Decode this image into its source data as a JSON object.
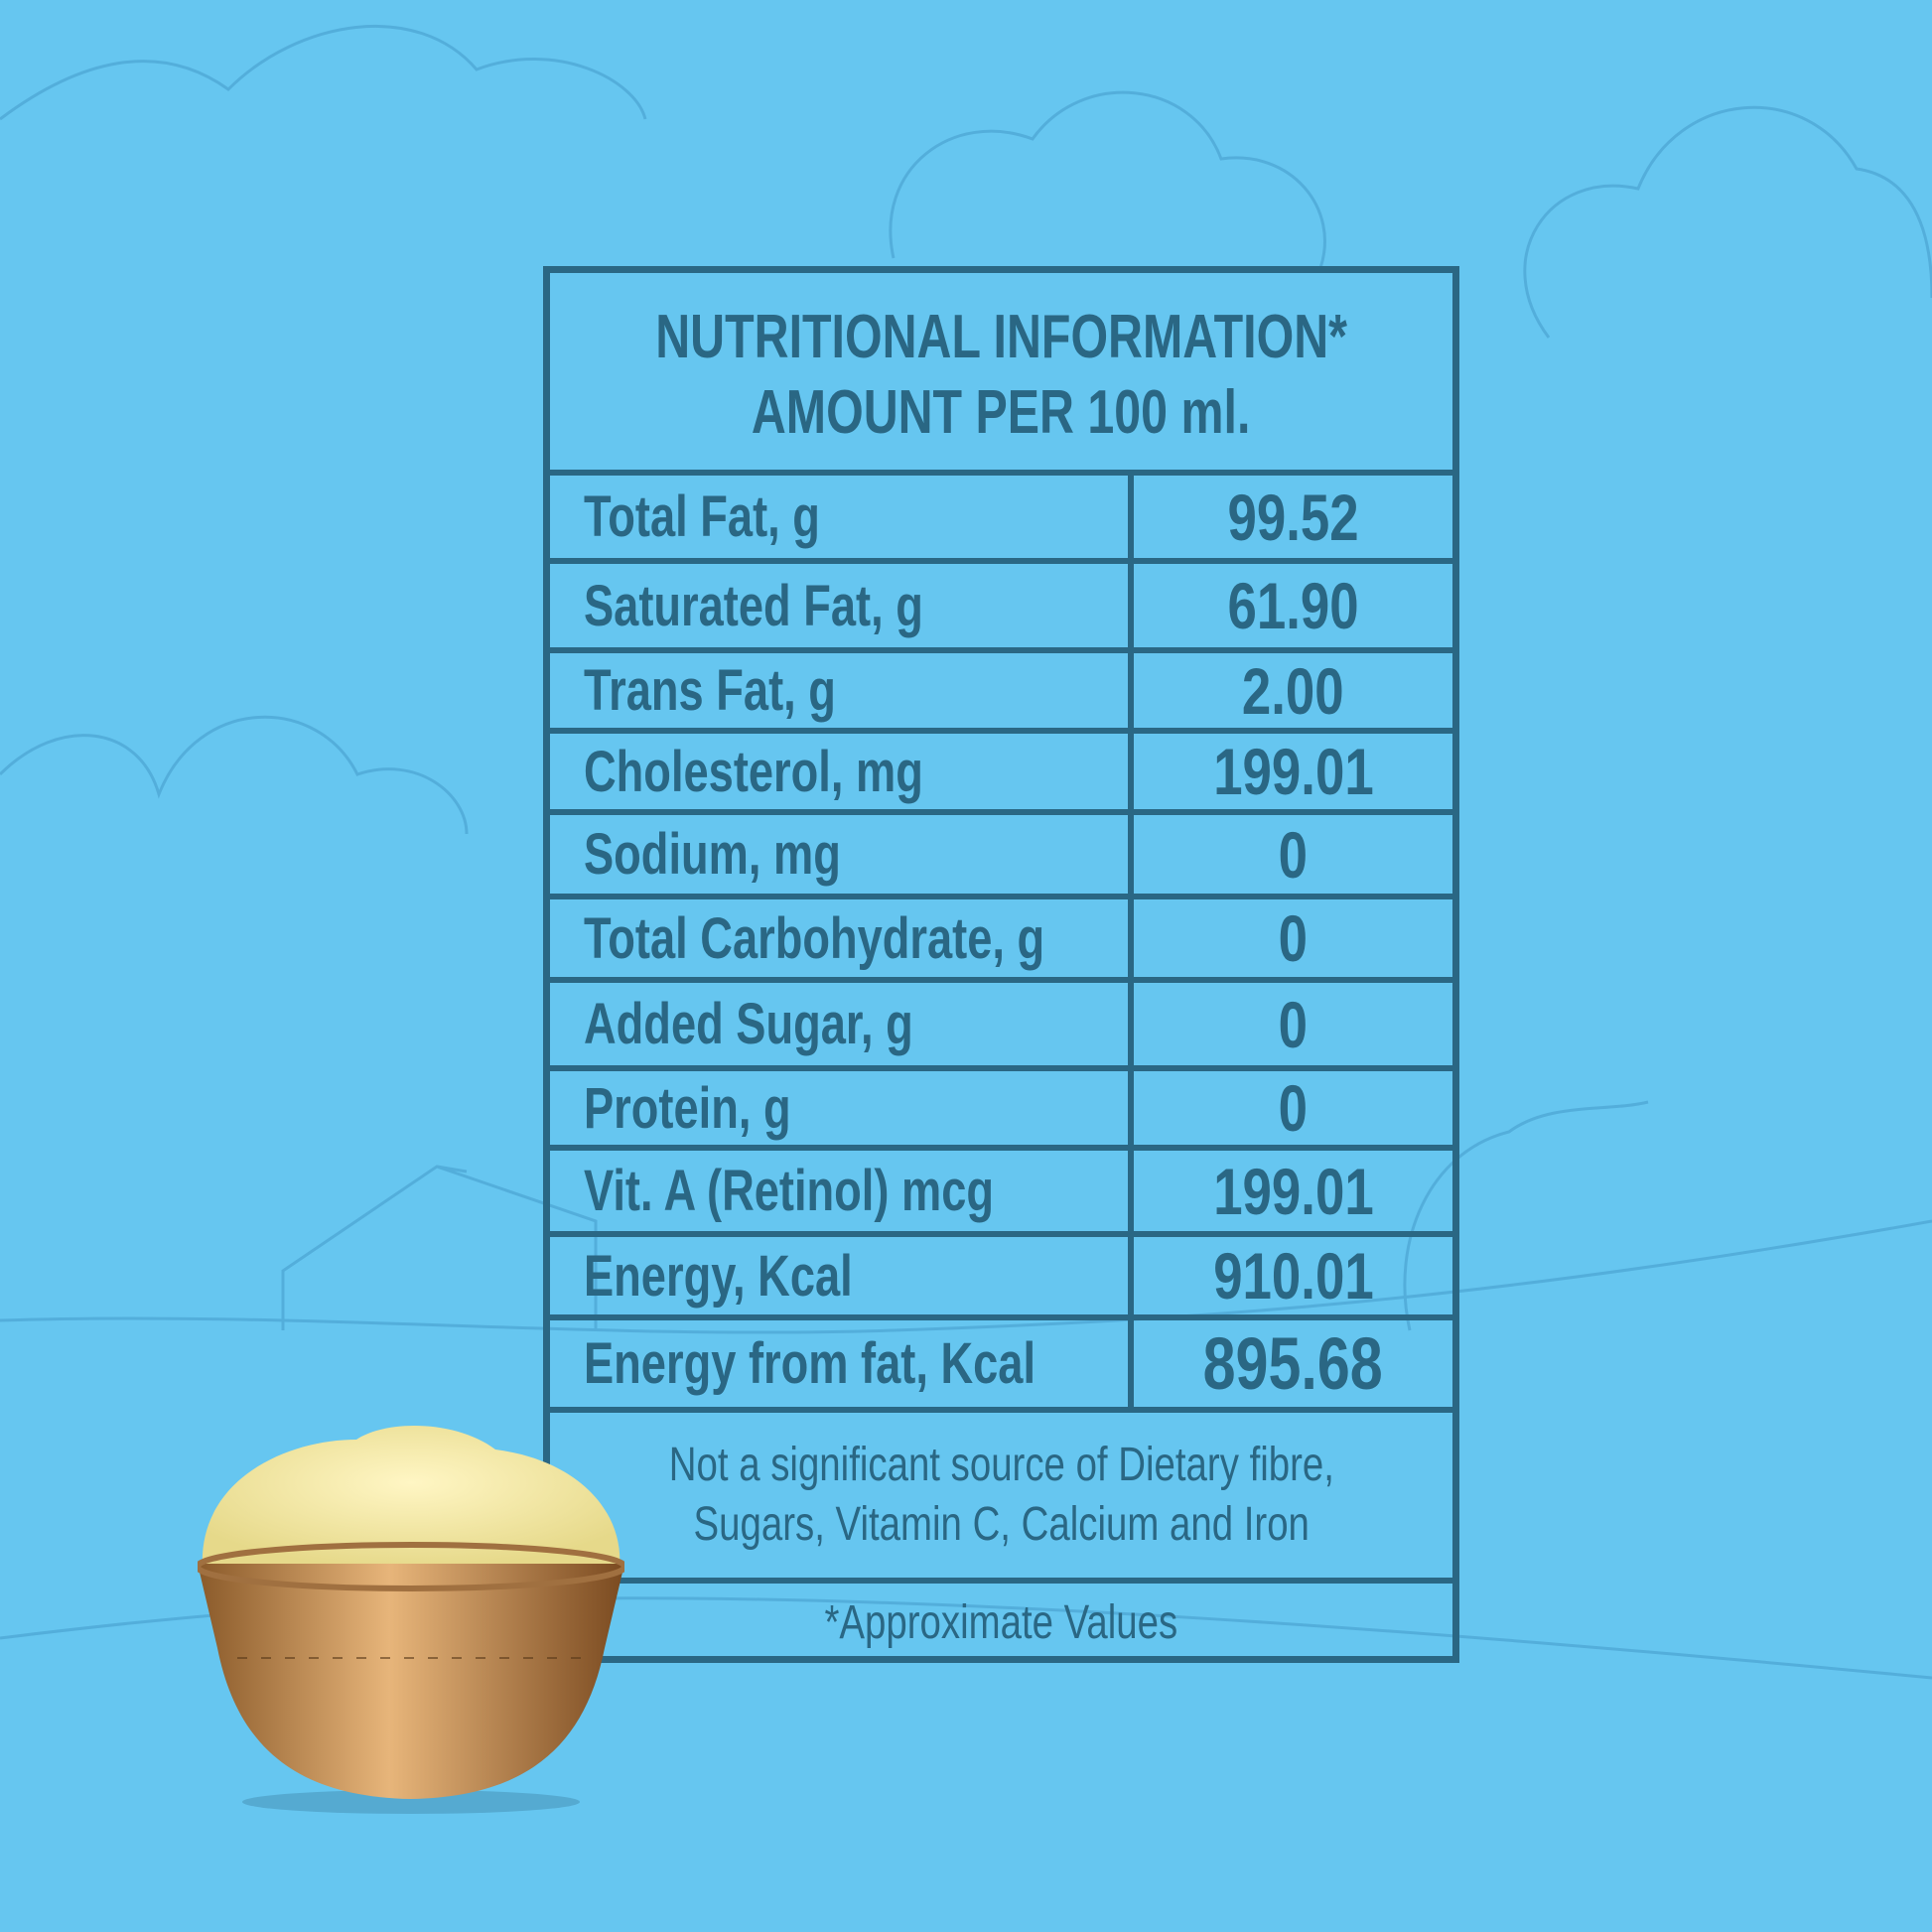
{
  "header": {
    "line1": "NUTRITIONAL INFORMATION*",
    "line2": "AMOUNT PER 100 ml."
  },
  "rows": [
    {
      "label": "Total Fat, g",
      "value": "99.52"
    },
    {
      "label": "Saturated Fat, g",
      "value": "61.90"
    },
    {
      "label": "Trans Fat, g",
      "value": "2.00"
    },
    {
      "label": "Cholesterol, mg",
      "value": "199.01"
    },
    {
      "label": "Sodium, mg",
      "value": "0"
    },
    {
      "label": "Total Carbohydrate, g",
      "value": "0"
    },
    {
      "label": "Added Sugar, g",
      "value": "0"
    },
    {
      "label": "Protein, g",
      "value": "0"
    },
    {
      "label": "Vit. A (Retinol) mcg",
      "value": "199.01"
    },
    {
      "label": "Energy, Kcal",
      "value": "910.01"
    },
    {
      "label": "Energy from fat, Kcal",
      "value": "895.68"
    }
  ],
  "note": {
    "line1": "Not a significant source of Dietary fibre,",
    "line2": "Sugars, Vitamin C, Calcium and Iron"
  },
  "footnote": "*Approximate Values",
  "colors": {
    "background": "#66c6f0",
    "ink": "#2a6784"
  }
}
